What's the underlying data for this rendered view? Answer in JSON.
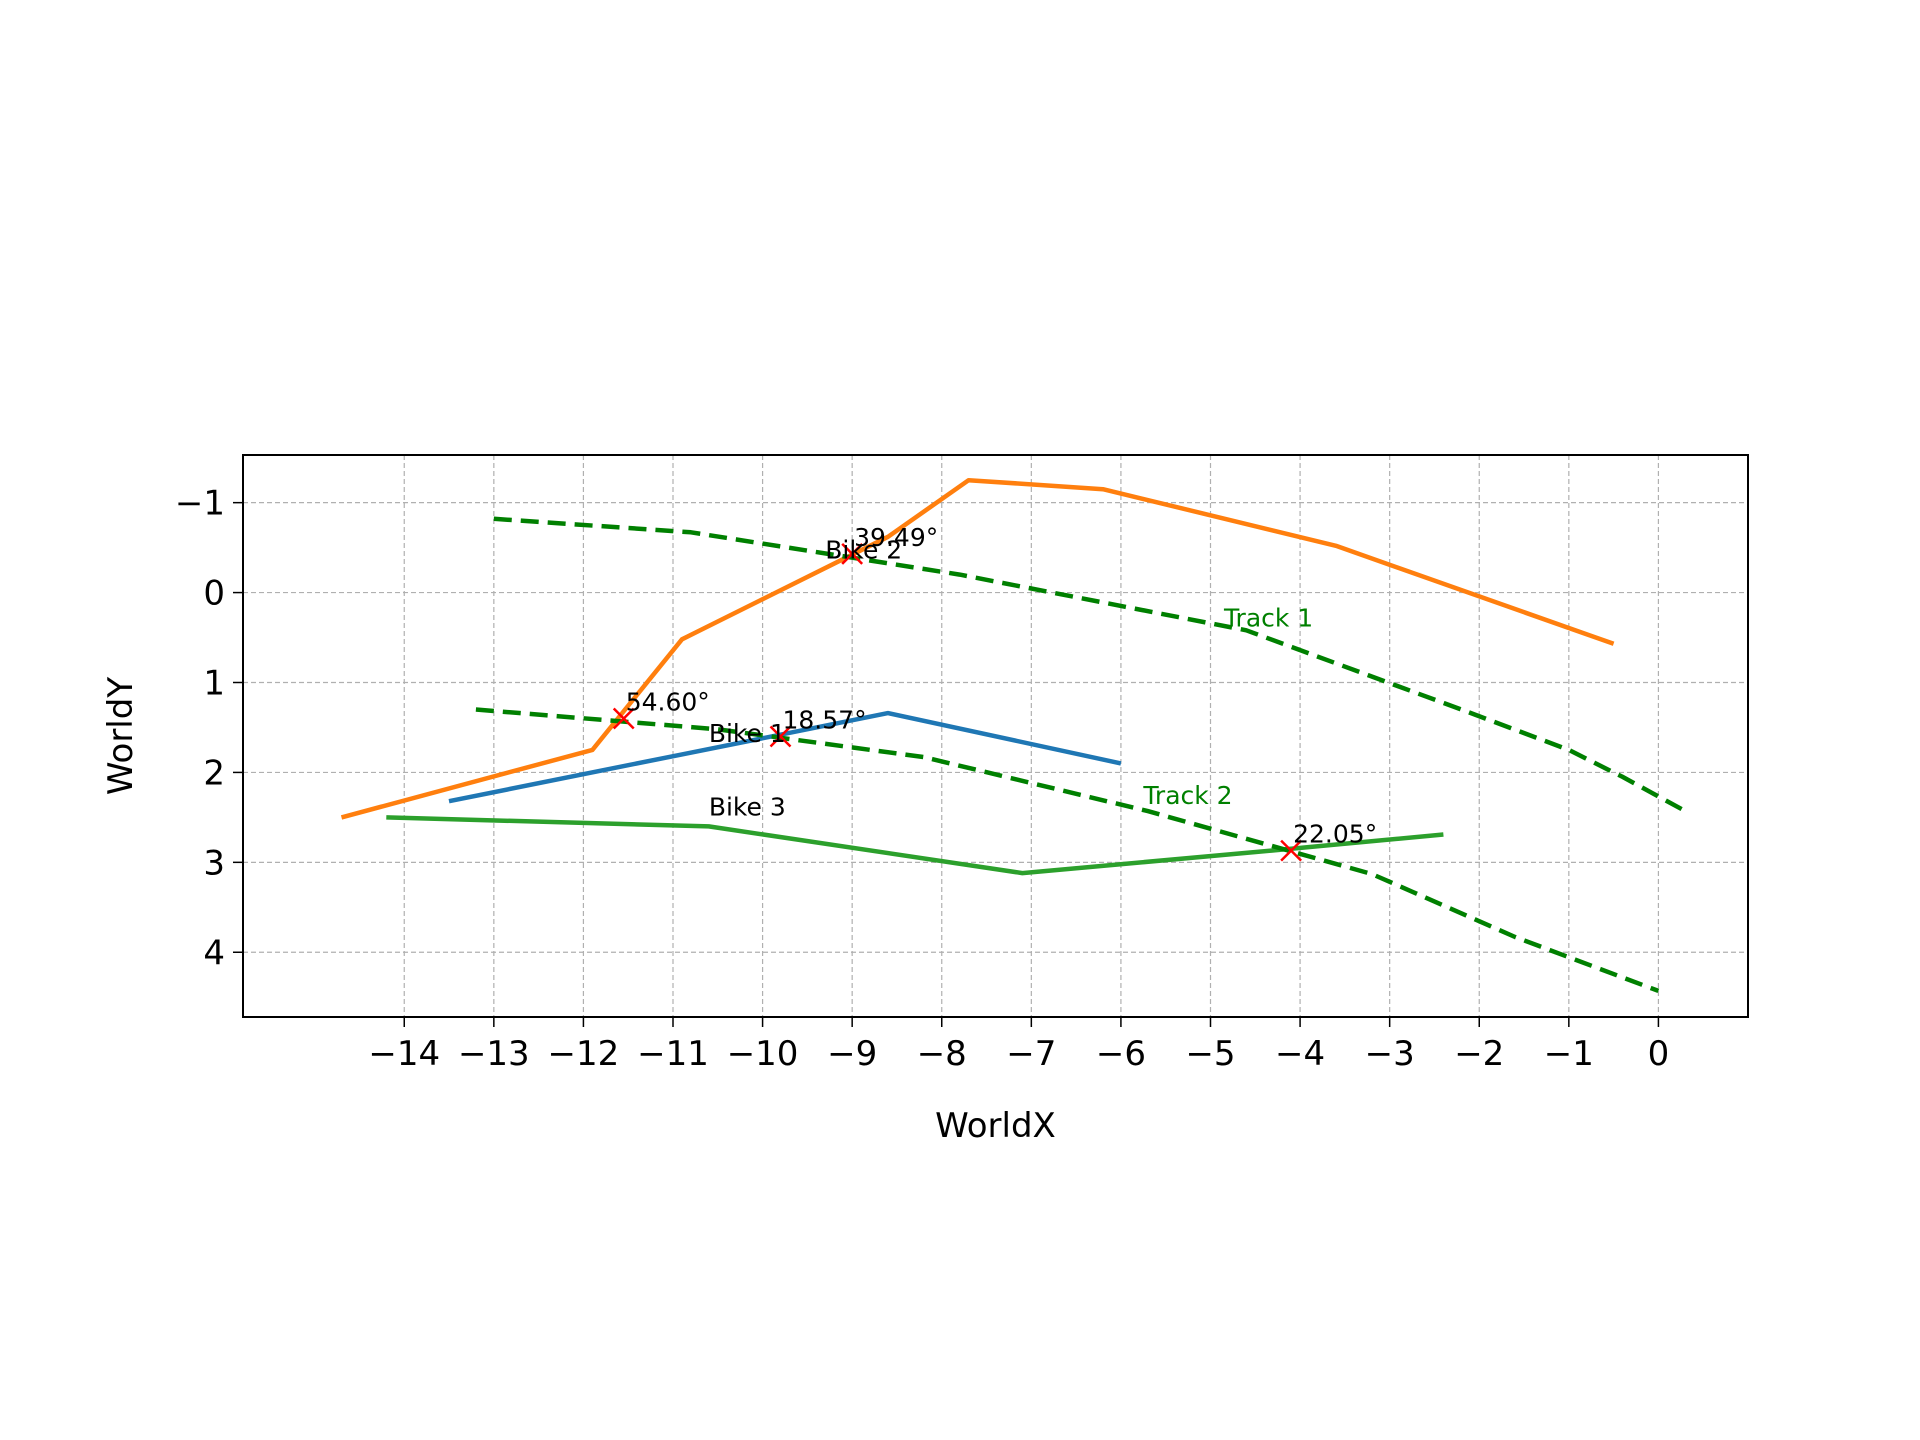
{
  "chart_data": {
    "type": "line",
    "xlabel": "WorldX",
    "ylabel": "WorldY",
    "xlim": [
      -15.8,
      1.0
    ],
    "ylim": [
      4.72,
      -1.53
    ],
    "y_inverted": true,
    "grid": true,
    "xticks": [
      -14,
      -13,
      -12,
      -11,
      -10,
      -9,
      -8,
      -7,
      -6,
      -5,
      -4,
      -3,
      -2,
      -1,
      0
    ],
    "yticks": [
      -1,
      0,
      1,
      2,
      3,
      4
    ],
    "series": [
      {
        "name": "Bike 1",
        "color": "#1f77b4",
        "style": "solid",
        "x": [
          -13.5,
          -10.9,
          -8.6,
          -6.0
        ],
        "y": [
          2.32,
          1.8,
          1.34,
          1.9
        ]
      },
      {
        "name": "Bike 2",
        "color": "#ff7f0e",
        "style": "solid",
        "x": [
          -14.7,
          -11.9,
          -10.9,
          -8.6,
          -7.7,
          -6.2,
          -3.6,
          -0.5
        ],
        "y": [
          2.5,
          1.75,
          0.52,
          -0.62,
          -1.25,
          -1.15,
          -0.52,
          0.57
        ]
      },
      {
        "name": "Bike 3",
        "color": "#2ca02c",
        "style": "solid",
        "x": [
          -14.2,
          -10.6,
          -7.1,
          -4.1,
          -2.4
        ],
        "y": [
          2.5,
          2.6,
          3.12,
          2.85,
          2.69
        ]
      },
      {
        "name": "Track 1",
        "color": "#008000",
        "style": "dashed",
        "x": [
          -13.0,
          -10.8,
          -7.8,
          -4.6,
          -2.2,
          -1.0,
          -0.4,
          0.3
        ],
        "y": [
          -0.82,
          -0.67,
          -0.2,
          0.42,
          1.3,
          1.75,
          2.05,
          2.43
        ]
      },
      {
        "name": "Track 2",
        "color": "#008000",
        "style": "dashed",
        "x": [
          -13.2,
          -10.5,
          -8.2,
          -5.7,
          -3.2,
          -1.6,
          0.0
        ],
        "y": [
          1.3,
          1.52,
          1.83,
          2.43,
          3.13,
          3.83,
          4.43
        ]
      }
    ],
    "series_labels": [
      {
        "text": "Bike 1",
        "x": -10.6,
        "y": 1.66
      },
      {
        "text": "Bike 2",
        "x": -9.3,
        "y": -0.38
      },
      {
        "text": "Bike 3",
        "x": -10.6,
        "y": 2.48
      },
      {
        "text": "Track 1",
        "x": -4.85,
        "y": 0.38,
        "color": "#008000"
      },
      {
        "text": "Track 2",
        "x": -5.75,
        "y": 2.35,
        "color": "#008000"
      }
    ],
    "intersections": [
      {
        "x": -9.0,
        "y": -0.43,
        "label": "39.49°"
      },
      {
        "x": -11.55,
        "y": 1.4,
        "label": "54.60°"
      },
      {
        "x": -9.8,
        "y": 1.6,
        "label": "18.57°"
      },
      {
        "x": -4.1,
        "y": 2.87,
        "label": "22.05°"
      }
    ],
    "marker_color": "#ff0000"
  }
}
